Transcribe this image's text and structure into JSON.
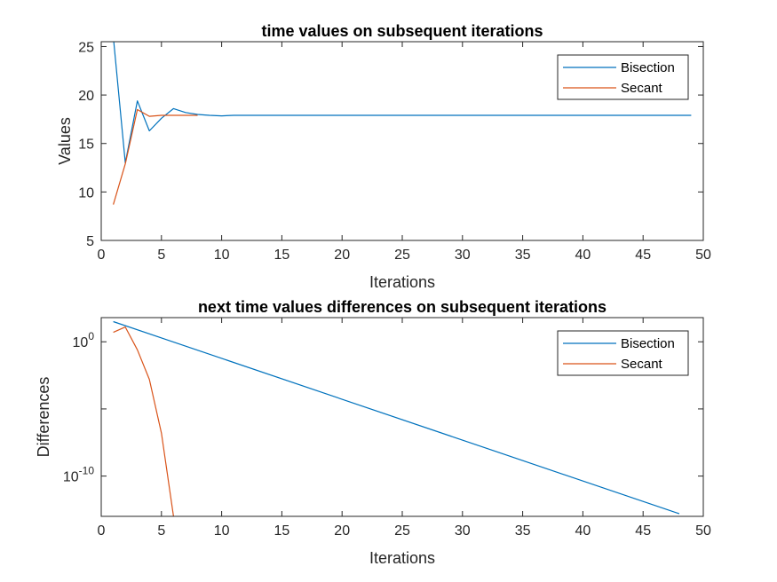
{
  "chart_data": [
    {
      "type": "line",
      "title": "time values on subsequent iterations",
      "xlabel": "Iterations",
      "ylabel": "Values",
      "xlim": [
        0,
        50
      ],
      "ylim": [
        5,
        25.5
      ],
      "xticks": [
        "0",
        "5",
        "10",
        "15",
        "20",
        "25",
        "30",
        "35",
        "40",
        "45",
        "50"
      ],
      "yticks": [
        "5",
        "10",
        "15",
        "20",
        "25"
      ],
      "yscale": "linear",
      "legend_position": "top-right",
      "series": [
        {
          "name": "Bisection",
          "color": "#0072bd",
          "x": [
            1,
            2,
            3,
            4,
            5,
            6,
            7,
            8,
            9,
            10,
            11,
            12,
            13,
            14,
            15,
            16,
            17,
            18,
            19,
            20,
            21,
            22,
            23,
            24,
            25,
            26,
            27,
            28,
            29,
            30,
            31,
            32,
            33,
            34,
            35,
            36,
            37,
            38,
            39,
            40,
            41,
            42,
            43,
            44,
            45,
            46,
            47,
            48,
            49
          ],
          "y": [
            26.0,
            13.0,
            19.4,
            16.3,
            17.6,
            18.6,
            18.2,
            18.0,
            17.9,
            17.85,
            17.9,
            17.9,
            17.9,
            17.9,
            17.9,
            17.9,
            17.9,
            17.9,
            17.9,
            17.9,
            17.9,
            17.9,
            17.9,
            17.9,
            17.9,
            17.9,
            17.9,
            17.9,
            17.9,
            17.9,
            17.9,
            17.9,
            17.9,
            17.9,
            17.9,
            17.9,
            17.9,
            17.9,
            17.9,
            17.9,
            17.9,
            17.9,
            17.9,
            17.9,
            17.9,
            17.9,
            17.9,
            17.9,
            17.9
          ]
        },
        {
          "name": "Secant",
          "color": "#d95319",
          "x": [
            1,
            2,
            3,
            4,
            5,
            6,
            7,
            8
          ],
          "y": [
            8.7,
            12.9,
            18.5,
            17.8,
            17.9,
            17.9,
            17.9,
            17.9
          ]
        }
      ]
    },
    {
      "type": "line",
      "title": "next time values differences on subsequent iterations",
      "xlabel": "Iterations",
      "ylabel": "Differences",
      "xlim": [
        0,
        50
      ],
      "ylim_log10": [
        -13,
        1.8
      ],
      "xticks": [
        "0",
        "5",
        "10",
        "15",
        "20",
        "25",
        "30",
        "35",
        "40",
        "45",
        "50"
      ],
      "yticks": [
        {
          "base": "10",
          "exp": "0"
        },
        {
          "base": "10",
          "exp": "-10"
        }
      ],
      "yscale": "log",
      "legend_position": "top-right",
      "series": [
        {
          "name": "Bisection",
          "color": "#0072bd",
          "x": [
            1,
            48
          ],
          "log10_y": [
            1.5,
            -12.8
          ]
        },
        {
          "name": "Secant",
          "color": "#d95319",
          "x": [
            1,
            2,
            3,
            4,
            5,
            6,
            7
          ],
          "log10_y": [
            0.7,
            1.1,
            -0.6,
            -2.8,
            -6.8,
            -13.0,
            -20.0
          ]
        }
      ]
    }
  ]
}
